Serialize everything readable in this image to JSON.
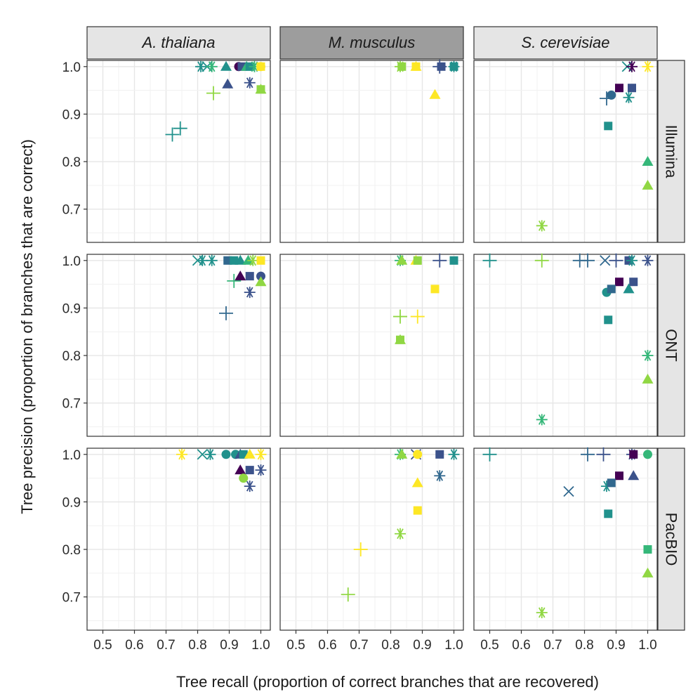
{
  "chart_data": {
    "type": "scatter",
    "xlabel": "Tree recall (proportion of correct branches that are recovered)",
    "ylabel": "Tree precision (proportion of branches that are correct)",
    "xlim": [
      0.45,
      1.03
    ],
    "ylim": [
      0.63,
      1.013
    ],
    "x_ticks": [
      "0.5",
      "0.6",
      "0.7",
      "0.8",
      "0.9",
      "1.0"
    ],
    "y_ticks": [
      "0.7",
      "0.8",
      "0.9",
      "1.0"
    ],
    "columns": [
      "A. thaliana",
      "M. musculus",
      "S. cerevisiae"
    ],
    "rows": [
      "Illumina",
      "ONT",
      "PacBIO"
    ],
    "highlighted_column": "M. musculus",
    "colors": {
      "dark_purple": "#440154",
      "indigo": "#3b528b",
      "blue": "#31688e",
      "teal": "#21918c",
      "green": "#35b779",
      "lime": "#90d743",
      "yellow": "#fde725",
      "strip_bg": "#e5e5e5",
      "strip_bg_dark": "#9d9d9d"
    },
    "panels": [
      {
        "row": 0,
        "col": 0,
        "points": [
          {
            "x": 0.81,
            "y": 1.0,
            "shape": "asterisk",
            "color": "teal"
          },
          {
            "x": 0.83,
            "y": 1.0,
            "shape": "x",
            "color": "teal"
          },
          {
            "x": 0.845,
            "y": 1.0,
            "shape": "asterisk",
            "color": "green"
          },
          {
            "x": 0.89,
            "y": 1.0,
            "shape": "triangle",
            "color": "teal"
          },
          {
            "x": 0.93,
            "y": 1.0,
            "shape": "circle",
            "color": "dark_purple"
          },
          {
            "x": 0.94,
            "y": 1.0,
            "shape": "square",
            "color": "indigo"
          },
          {
            "x": 0.955,
            "y": 1.0,
            "shape": "triangle",
            "color": "green"
          },
          {
            "x": 0.965,
            "y": 1.0,
            "shape": "square",
            "color": "teal"
          },
          {
            "x": 0.98,
            "y": 1.0,
            "shape": "asterisk",
            "color": "green"
          },
          {
            "x": 1.0,
            "y": 1.0,
            "shape": "square",
            "color": "yellow"
          },
          {
            "x": 1.0,
            "y": 1.0,
            "shape": "circle",
            "color": "yellow"
          },
          {
            "x": 0.895,
            "y": 0.963,
            "shape": "triangle",
            "color": "indigo"
          },
          {
            "x": 0.965,
            "y": 0.966,
            "shape": "asterisk",
            "color": "indigo"
          },
          {
            "x": 1.0,
            "y": 0.952,
            "shape": "triangle",
            "color": "lime"
          },
          {
            "x": 1.0,
            "y": 0.952,
            "shape": "square",
            "color": "lime"
          },
          {
            "x": 0.85,
            "y": 0.944,
            "shape": "plus",
            "color": "lime"
          },
          {
            "x": 0.72,
            "y": 0.857,
            "shape": "plus",
            "color": "teal"
          },
          {
            "x": 0.745,
            "y": 0.87,
            "shape": "plus",
            "color": "teal"
          }
        ]
      },
      {
        "row": 0,
        "col": 1,
        "points": [
          {
            "x": 0.83,
            "y": 1.0,
            "shape": "asterisk",
            "color": "lime"
          },
          {
            "x": 0.835,
            "y": 1.0,
            "shape": "square",
            "color": "lime"
          },
          {
            "x": 0.88,
            "y": 1.0,
            "shape": "square",
            "color": "yellow"
          },
          {
            "x": 0.88,
            "y": 1.0,
            "shape": "triangle",
            "color": "yellow"
          },
          {
            "x": 0.955,
            "y": 1.0,
            "shape": "plus",
            "color": "indigo"
          },
          {
            "x": 0.96,
            "y": 1.0,
            "shape": "square",
            "color": "indigo"
          },
          {
            "x": 1.0,
            "y": 1.0,
            "shape": "square",
            "color": "teal"
          },
          {
            "x": 1.0,
            "y": 1.0,
            "shape": "asterisk",
            "color": "teal"
          },
          {
            "x": 0.94,
            "y": 0.941,
            "shape": "triangle",
            "color": "yellow"
          }
        ]
      },
      {
        "row": 0,
        "col": 2,
        "points": [
          {
            "x": 0.935,
            "y": 1.0,
            "shape": "x",
            "color": "teal"
          },
          {
            "x": 0.95,
            "y": 1.0,
            "shape": "asterisk",
            "color": "dark_purple"
          },
          {
            "x": 1.0,
            "y": 1.0,
            "shape": "asterisk",
            "color": "yellow"
          },
          {
            "x": 0.91,
            "y": 0.955,
            "shape": "square",
            "color": "dark_purple"
          },
          {
            "x": 0.95,
            "y": 0.955,
            "shape": "square",
            "color": "indigo"
          },
          {
            "x": 0.885,
            "y": 0.94,
            "shape": "circle",
            "color": "blue"
          },
          {
            "x": 0.87,
            "y": 0.933,
            "shape": "plus",
            "color": "blue"
          },
          {
            "x": 0.94,
            "y": 0.935,
            "shape": "asterisk",
            "color": "teal"
          },
          {
            "x": 0.875,
            "y": 0.875,
            "shape": "square",
            "color": "teal"
          },
          {
            "x": 1.0,
            "y": 0.8,
            "shape": "triangle",
            "color": "green"
          },
          {
            "x": 1.0,
            "y": 0.75,
            "shape": "triangle",
            "color": "lime"
          },
          {
            "x": 0.665,
            "y": 0.665,
            "shape": "asterisk",
            "color": "lime"
          }
        ]
      },
      {
        "row": 1,
        "col": 0,
        "points": [
          {
            "x": 0.8,
            "y": 1.0,
            "shape": "x",
            "color": "teal"
          },
          {
            "x": 0.815,
            "y": 1.0,
            "shape": "asterisk",
            "color": "teal"
          },
          {
            "x": 0.845,
            "y": 1.0,
            "shape": "asterisk",
            "color": "teal"
          },
          {
            "x": 0.895,
            "y": 1.0,
            "shape": "square",
            "color": "blue"
          },
          {
            "x": 0.915,
            "y": 1.0,
            "shape": "square",
            "color": "teal"
          },
          {
            "x": 0.935,
            "y": 1.0,
            "shape": "triangle",
            "color": "teal"
          },
          {
            "x": 0.96,
            "y": 1.0,
            "shape": "triangle",
            "color": "green"
          },
          {
            "x": 0.975,
            "y": 1.0,
            "shape": "asterisk",
            "color": "lime"
          },
          {
            "x": 1.0,
            "y": 1.0,
            "shape": "square",
            "color": "yellow"
          },
          {
            "x": 0.915,
            "y": 0.957,
            "shape": "plus",
            "color": "green"
          },
          {
            "x": 0.935,
            "y": 0.967,
            "shape": "triangle",
            "color": "dark_purple"
          },
          {
            "x": 0.965,
            "y": 0.967,
            "shape": "square",
            "color": "indigo"
          },
          {
            "x": 1.0,
            "y": 0.967,
            "shape": "circle",
            "color": "indigo"
          },
          {
            "x": 1.0,
            "y": 0.955,
            "shape": "triangle",
            "color": "lime"
          },
          {
            "x": 0.965,
            "y": 0.933,
            "shape": "asterisk",
            "color": "indigo"
          },
          {
            "x": 0.89,
            "y": 0.889,
            "shape": "plus",
            "color": "blue"
          }
        ]
      },
      {
        "row": 1,
        "col": 1,
        "points": [
          {
            "x": 0.83,
            "y": 1.0,
            "shape": "asterisk",
            "color": "green"
          },
          {
            "x": 0.835,
            "y": 1.0,
            "shape": "triangle",
            "color": "lime"
          },
          {
            "x": 0.88,
            "y": 1.0,
            "shape": "triangle",
            "color": "yellow"
          },
          {
            "x": 0.885,
            "y": 1.0,
            "shape": "square",
            "color": "lime"
          },
          {
            "x": 0.955,
            "y": 1.0,
            "shape": "plus",
            "color": "indigo"
          },
          {
            "x": 1.0,
            "y": 1.0,
            "shape": "square",
            "color": "teal"
          },
          {
            "x": 0.94,
            "y": 0.94,
            "shape": "square",
            "color": "yellow"
          },
          {
            "x": 0.83,
            "y": 0.882,
            "shape": "plus",
            "color": "lime"
          },
          {
            "x": 0.885,
            "y": 0.882,
            "shape": "plus",
            "color": "yellow"
          },
          {
            "x": 0.83,
            "y": 0.833,
            "shape": "triangle",
            "color": "lime"
          },
          {
            "x": 0.83,
            "y": 0.833,
            "shape": "square",
            "color": "lime"
          }
        ]
      },
      {
        "row": 1,
        "col": 2,
        "points": [
          {
            "x": 0.5,
            "y": 1.0,
            "shape": "plus",
            "color": "teal"
          },
          {
            "x": 0.665,
            "y": 1.0,
            "shape": "plus",
            "color": "lime"
          },
          {
            "x": 0.785,
            "y": 1.0,
            "shape": "plus",
            "color": "blue"
          },
          {
            "x": 0.81,
            "y": 1.0,
            "shape": "plus",
            "color": "blue"
          },
          {
            "x": 0.865,
            "y": 1.0,
            "shape": "x",
            "color": "blue"
          },
          {
            "x": 0.9,
            "y": 1.0,
            "shape": "plus",
            "color": "indigo"
          },
          {
            "x": 0.94,
            "y": 1.0,
            "shape": "square",
            "color": "indigo"
          },
          {
            "x": 0.95,
            "y": 1.0,
            "shape": "asterisk",
            "color": "teal"
          },
          {
            "x": 1.0,
            "y": 1.0,
            "shape": "asterisk",
            "color": "indigo"
          },
          {
            "x": 0.91,
            "y": 0.955,
            "shape": "square",
            "color": "dark_purple"
          },
          {
            "x": 0.955,
            "y": 0.955,
            "shape": "square",
            "color": "indigo"
          },
          {
            "x": 0.87,
            "y": 0.933,
            "shape": "circle",
            "color": "teal"
          },
          {
            "x": 0.885,
            "y": 0.94,
            "shape": "square",
            "color": "blue"
          },
          {
            "x": 0.94,
            "y": 0.94,
            "shape": "triangle",
            "color": "teal"
          },
          {
            "x": 0.875,
            "y": 0.875,
            "shape": "square",
            "color": "teal"
          },
          {
            "x": 1.0,
            "y": 0.8,
            "shape": "asterisk",
            "color": "green"
          },
          {
            "x": 1.0,
            "y": 0.75,
            "shape": "triangle",
            "color": "lime"
          },
          {
            "x": 0.665,
            "y": 0.665,
            "shape": "asterisk",
            "color": "green"
          }
        ]
      },
      {
        "row": 2,
        "col": 0,
        "points": [
          {
            "x": 0.75,
            "y": 1.0,
            "shape": "asterisk",
            "color": "yellow"
          },
          {
            "x": 0.815,
            "y": 1.0,
            "shape": "x",
            "color": "teal"
          },
          {
            "x": 0.84,
            "y": 1.0,
            "shape": "asterisk",
            "color": "teal"
          },
          {
            "x": 0.89,
            "y": 1.0,
            "shape": "circle",
            "color": "teal"
          },
          {
            "x": 0.92,
            "y": 1.0,
            "shape": "circle",
            "color": "teal"
          },
          {
            "x": 0.935,
            "y": 1.0,
            "shape": "triangle",
            "color": "indigo"
          },
          {
            "x": 0.945,
            "y": 1.0,
            "shape": "square",
            "color": "teal"
          },
          {
            "x": 0.965,
            "y": 1.0,
            "shape": "triangle",
            "color": "yellow"
          },
          {
            "x": 1.0,
            "y": 1.0,
            "shape": "asterisk",
            "color": "yellow"
          },
          {
            "x": 0.935,
            "y": 0.967,
            "shape": "triangle",
            "color": "dark_purple"
          },
          {
            "x": 0.965,
            "y": 0.967,
            "shape": "square",
            "color": "indigo"
          },
          {
            "x": 1.0,
            "y": 0.967,
            "shape": "asterisk",
            "color": "indigo"
          },
          {
            "x": 0.945,
            "y": 0.95,
            "shape": "circle",
            "color": "lime"
          },
          {
            "x": 0.965,
            "y": 0.933,
            "shape": "asterisk",
            "color": "indigo"
          }
        ]
      },
      {
        "row": 2,
        "col": 1,
        "points": [
          {
            "x": 0.83,
            "y": 1.0,
            "shape": "asterisk",
            "color": "green"
          },
          {
            "x": 0.835,
            "y": 1.0,
            "shape": "triangle",
            "color": "lime"
          },
          {
            "x": 0.88,
            "y": 1.0,
            "shape": "x",
            "color": "indigo"
          },
          {
            "x": 0.885,
            "y": 1.0,
            "shape": "circle",
            "color": "yellow"
          },
          {
            "x": 0.955,
            "y": 1.0,
            "shape": "square",
            "color": "indigo"
          },
          {
            "x": 1.0,
            "y": 1.0,
            "shape": "asterisk",
            "color": "teal"
          },
          {
            "x": 0.955,
            "y": 0.955,
            "shape": "asterisk",
            "color": "blue"
          },
          {
            "x": 0.885,
            "y": 0.94,
            "shape": "triangle",
            "color": "yellow"
          },
          {
            "x": 0.885,
            "y": 0.882,
            "shape": "square",
            "color": "yellow"
          },
          {
            "x": 0.83,
            "y": 0.833,
            "shape": "asterisk",
            "color": "lime"
          },
          {
            "x": 0.705,
            "y": 0.8,
            "shape": "plus",
            "color": "yellow"
          },
          {
            "x": 0.665,
            "y": 0.705,
            "shape": "plus",
            "color": "lime"
          }
        ]
      },
      {
        "row": 2,
        "col": 2,
        "points": [
          {
            "x": 0.5,
            "y": 1.0,
            "shape": "plus",
            "color": "teal"
          },
          {
            "x": 0.81,
            "y": 1.0,
            "shape": "plus",
            "color": "blue"
          },
          {
            "x": 0.86,
            "y": 1.0,
            "shape": "plus",
            "color": "indigo"
          },
          {
            "x": 0.95,
            "y": 1.0,
            "shape": "asterisk",
            "color": "indigo"
          },
          {
            "x": 0.955,
            "y": 1.0,
            "shape": "square",
            "color": "dark_purple"
          },
          {
            "x": 1.0,
            "y": 1.0,
            "shape": "circle",
            "color": "green"
          },
          {
            "x": 0.75,
            "y": 0.922,
            "shape": "x",
            "color": "blue"
          },
          {
            "x": 0.91,
            "y": 0.955,
            "shape": "square",
            "color": "dark_purple"
          },
          {
            "x": 0.955,
            "y": 0.955,
            "shape": "triangle",
            "color": "indigo"
          },
          {
            "x": 0.87,
            "y": 0.933,
            "shape": "asterisk",
            "color": "teal"
          },
          {
            "x": 0.885,
            "y": 0.94,
            "shape": "square",
            "color": "blue"
          },
          {
            "x": 0.875,
            "y": 0.875,
            "shape": "square",
            "color": "teal"
          },
          {
            "x": 1.0,
            "y": 0.8,
            "shape": "square",
            "color": "green"
          },
          {
            "x": 1.0,
            "y": 0.75,
            "shape": "triangle",
            "color": "lime"
          },
          {
            "x": 0.665,
            "y": 0.667,
            "shape": "asterisk",
            "color": "lime"
          }
        ]
      }
    ]
  }
}
